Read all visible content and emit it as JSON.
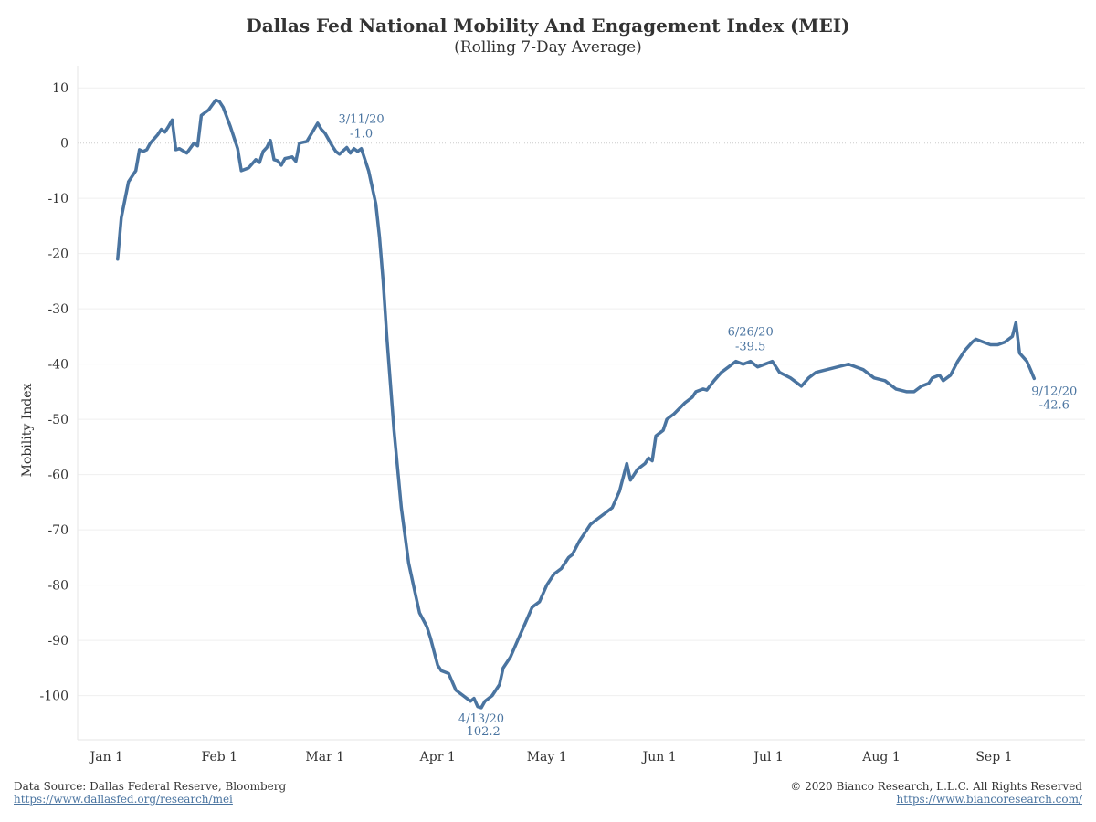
{
  "header": {
    "title": "Dallas Fed National Mobility And Engagement Index (MEI)",
    "subtitle": "(Rolling 7-Day Average)"
  },
  "footer": {
    "source_text": "Data Source: Dallas Federal Reserve, Bloomberg",
    "source_link": "https://www.dallasfed.org/research/mei",
    "copyright_text": "© 2020 Bianco Research, L.L.C. All Rights Reserved",
    "copyright_link": "https://www.biancoresearch.com/"
  },
  "chart_data": {
    "type": "line",
    "title": "Dallas Fed National Mobility And Engagement Index (MEI)",
    "subtitle": "(Rolling 7-Day Average)",
    "ylabel": "Mobility Index",
    "xlabel": "",
    "ylim": [
      -108,
      14
    ],
    "yticks": [
      10,
      0,
      -10,
      -20,
      -30,
      -40,
      -50,
      -60,
      -70,
      -80,
      -90,
      -100
    ],
    "xticks": [
      {
        "date": "2020-01-01",
        "label": "Jan 1"
      },
      {
        "date": "2020-02-01",
        "label": "Feb 1"
      },
      {
        "date": "2020-03-01",
        "label": "Mar 1"
      },
      {
        "date": "2020-04-01",
        "label": "Apr 1"
      },
      {
        "date": "2020-05-01",
        "label": "May 1"
      },
      {
        "date": "2020-06-01",
        "label": "Jun 1"
      },
      {
        "date": "2020-07-01",
        "label": "Jul 1"
      },
      {
        "date": "2020-08-01",
        "label": "Aug 1"
      },
      {
        "date": "2020-09-01",
        "label": "Sep 1"
      }
    ],
    "xlim": [
      "2019-12-24",
      "2020-09-26"
    ],
    "grid": true,
    "line_color": "#4a74a0",
    "series": [
      {
        "points": [
          [
            "2020-01-04",
            -21
          ],
          [
            "2020-01-05",
            -13.5
          ],
          [
            "2020-01-07",
            -7
          ],
          [
            "2020-01-09",
            -5
          ],
          [
            "2020-01-10",
            -1.2
          ],
          [
            "2020-01-11",
            -1.5
          ],
          [
            "2020-01-12",
            -1.2
          ],
          [
            "2020-01-13",
            0
          ],
          [
            "2020-01-15",
            1.5
          ],
          [
            "2020-01-16",
            2.5
          ],
          [
            "2020-01-17",
            2
          ],
          [
            "2020-01-18",
            3
          ],
          [
            "2020-01-19",
            4.2
          ],
          [
            "2020-01-20",
            -1.2
          ],
          [
            "2020-01-21",
            -1
          ],
          [
            "2020-01-23",
            -1.8
          ],
          [
            "2020-01-25",
            0
          ],
          [
            "2020-01-26",
            -0.5
          ],
          [
            "2020-01-27",
            5
          ],
          [
            "2020-01-29",
            6
          ],
          [
            "2020-01-31",
            7.8
          ],
          [
            "2020-02-01",
            7.5
          ],
          [
            "2020-02-02",
            6.5
          ],
          [
            "2020-02-04",
            3
          ],
          [
            "2020-02-06",
            -1
          ],
          [
            "2020-02-07",
            -5
          ],
          [
            "2020-02-09",
            -4.5
          ],
          [
            "2020-02-11",
            -3
          ],
          [
            "2020-02-12",
            -3.5
          ],
          [
            "2020-02-13",
            -1.5
          ],
          [
            "2020-02-14",
            -0.8
          ],
          [
            "2020-02-15",
            0.5
          ],
          [
            "2020-02-16",
            -3
          ],
          [
            "2020-02-17",
            -3.2
          ],
          [
            "2020-02-18",
            -4
          ],
          [
            "2020-02-19",
            -2.8
          ],
          [
            "2020-02-21",
            -2.5
          ],
          [
            "2020-02-22",
            -3.3
          ],
          [
            "2020-02-23",
            0
          ],
          [
            "2020-02-25",
            0.3
          ],
          [
            "2020-02-27",
            2.5
          ],
          [
            "2020-02-28",
            3.6
          ],
          [
            "2020-02-29",
            2.5
          ],
          [
            "2020-03-01",
            1.8
          ],
          [
            "2020-03-03",
            -0.5
          ],
          [
            "2020-03-04",
            -1.5
          ],
          [
            "2020-03-05",
            -2
          ],
          [
            "2020-03-07",
            -0.8
          ],
          [
            "2020-03-08",
            -1.8
          ],
          [
            "2020-03-09",
            -1
          ],
          [
            "2020-03-10",
            -1.5
          ],
          [
            "2020-03-11",
            -1
          ],
          [
            "2020-03-13",
            -5
          ],
          [
            "2020-03-15",
            -11
          ],
          [
            "2020-03-16",
            -17
          ],
          [
            "2020-03-17",
            -25
          ],
          [
            "2020-03-18",
            -35
          ],
          [
            "2020-03-20",
            -52
          ],
          [
            "2020-03-22",
            -66
          ],
          [
            "2020-03-24",
            -76
          ],
          [
            "2020-03-26",
            -82
          ],
          [
            "2020-03-27",
            -85
          ],
          [
            "2020-03-29",
            -87.5
          ],
          [
            "2020-03-30",
            -89.5
          ],
          [
            "2020-03-31",
            -92
          ],
          [
            "2020-04-01",
            -94.5
          ],
          [
            "2020-04-02",
            -95.5
          ],
          [
            "2020-04-04",
            -96
          ],
          [
            "2020-04-06",
            -99
          ],
          [
            "2020-04-08",
            -100
          ],
          [
            "2020-04-10",
            -101
          ],
          [
            "2020-04-11",
            -100.5
          ],
          [
            "2020-04-12",
            -102
          ],
          [
            "2020-04-13",
            -102.2
          ],
          [
            "2020-04-14",
            -101
          ],
          [
            "2020-04-16",
            -100
          ],
          [
            "2020-04-18",
            -98
          ],
          [
            "2020-04-19",
            -95
          ],
          [
            "2020-04-21",
            -93
          ],
          [
            "2020-04-23",
            -90
          ],
          [
            "2020-04-25",
            -87
          ],
          [
            "2020-04-27",
            -84
          ],
          [
            "2020-04-29",
            -83
          ],
          [
            "2020-05-01",
            -80
          ],
          [
            "2020-05-03",
            -78
          ],
          [
            "2020-05-05",
            -77
          ],
          [
            "2020-05-07",
            -75
          ],
          [
            "2020-05-08",
            -74.5
          ],
          [
            "2020-05-10",
            -72
          ],
          [
            "2020-05-11",
            -71
          ],
          [
            "2020-05-13",
            -69
          ],
          [
            "2020-05-15",
            -68
          ],
          [
            "2020-05-17",
            -67
          ],
          [
            "2020-05-19",
            -66
          ],
          [
            "2020-05-21",
            -63
          ],
          [
            "2020-05-23",
            -58
          ],
          [
            "2020-05-24",
            -61
          ],
          [
            "2020-05-26",
            -59
          ],
          [
            "2020-05-28",
            -58
          ],
          [
            "2020-05-29",
            -57
          ],
          [
            "2020-05-30",
            -57.5
          ],
          [
            "2020-05-31",
            -53
          ],
          [
            "2020-06-02",
            -52
          ],
          [
            "2020-06-03",
            -50
          ],
          [
            "2020-06-05",
            -49
          ],
          [
            "2020-06-08",
            -47
          ],
          [
            "2020-06-10",
            -46
          ],
          [
            "2020-06-11",
            -45
          ],
          [
            "2020-06-13",
            -44.5
          ],
          [
            "2020-06-14",
            -44.7
          ],
          [
            "2020-06-16",
            -43
          ],
          [
            "2020-06-18",
            -41.5
          ],
          [
            "2020-06-20",
            -40.5
          ],
          [
            "2020-06-22",
            -39.5
          ],
          [
            "2020-06-24",
            -40
          ],
          [
            "2020-06-26",
            -39.5
          ],
          [
            "2020-06-28",
            -40.5
          ],
          [
            "2020-06-30",
            -40
          ],
          [
            "2020-07-02",
            -39.5
          ],
          [
            "2020-07-04",
            -41.5
          ],
          [
            "2020-07-07",
            -42.5
          ],
          [
            "2020-07-09",
            -43.5
          ],
          [
            "2020-07-10",
            -44
          ],
          [
            "2020-07-12",
            -42.5
          ],
          [
            "2020-07-14",
            -41.5
          ],
          [
            "2020-07-17",
            -41
          ],
          [
            "2020-07-20",
            -40.5
          ],
          [
            "2020-07-23",
            -40
          ],
          [
            "2020-07-25",
            -40.5
          ],
          [
            "2020-07-27",
            -41
          ],
          [
            "2020-07-30",
            -42.5
          ],
          [
            "2020-08-02",
            -43
          ],
          [
            "2020-08-05",
            -44.5
          ],
          [
            "2020-08-08",
            -45
          ],
          [
            "2020-08-10",
            -45
          ],
          [
            "2020-08-12",
            -44
          ],
          [
            "2020-08-14",
            -43.5
          ],
          [
            "2020-08-15",
            -42.5
          ],
          [
            "2020-08-17",
            -42
          ],
          [
            "2020-08-18",
            -43
          ],
          [
            "2020-08-20",
            -42
          ],
          [
            "2020-08-22",
            -39.5
          ],
          [
            "2020-08-24",
            -37.5
          ],
          [
            "2020-08-26",
            -36
          ],
          [
            "2020-08-27",
            -35.5
          ],
          [
            "2020-08-29",
            -36
          ],
          [
            "2020-08-31",
            -36.5
          ],
          [
            "2020-09-02",
            -36.5
          ],
          [
            "2020-09-04",
            -36
          ],
          [
            "2020-09-05",
            -35.5
          ],
          [
            "2020-09-06",
            -35
          ],
          [
            "2020-09-07",
            -32.5
          ],
          [
            "2020-09-08",
            -38
          ],
          [
            "2020-09-10",
            -39.5
          ],
          [
            "2020-09-11",
            -41
          ],
          [
            "2020-09-12",
            -42.6
          ]
        ]
      }
    ],
    "annotations": [
      {
        "date": "2020-03-11",
        "value": -1.0,
        "date_label": "3/11/20",
        "value_label": "-1.0",
        "position": "above"
      },
      {
        "date": "2020-04-13",
        "value": -102.2,
        "date_label": "4/13/20",
        "value_label": "-102.2",
        "position": "below"
      },
      {
        "date": "2020-06-26",
        "value": -39.5,
        "date_label": "6/26/20",
        "value_label": "-39.5",
        "position": "above"
      },
      {
        "date": "2020-09-12",
        "value": -42.6,
        "date_label": "9/12/20",
        "value_label": "-42.6",
        "position": "below-right"
      }
    ]
  }
}
